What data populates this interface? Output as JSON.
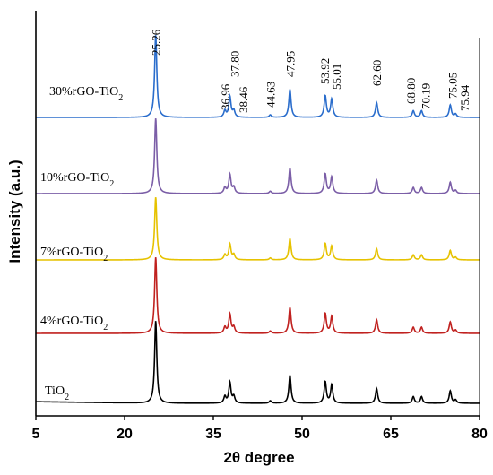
{
  "chart_data": {
    "type": "line",
    "xlabel": "2θ degree",
    "ylabel": "Intensity (a.u.)",
    "xlim": [
      5,
      80
    ],
    "xticks": [
      "5",
      "20",
      "35",
      "50",
      "65",
      "80"
    ],
    "grid": false,
    "legend": "inline labels above each trace",
    "series": [
      {
        "name": "TiO",
        "subscript": "2",
        "color": "#000000"
      },
      {
        "name": "4%rGO-TiO",
        "subscript": "2",
        "color": "#c0211f"
      },
      {
        "name": "7%rGO-TiO",
        "subscript": "2",
        "color": "#e6c200"
      },
      {
        "name": "10%rGO-TiO",
        "subscript": "2",
        "color": "#7b5ea7"
      },
      {
        "name": "30%rGO-TiO",
        "subscript": "2",
        "color": "#2a6dcc"
      }
    ],
    "peaks": [
      {
        "x": 25.26,
        "label": "25.26",
        "height": 1.0
      },
      {
        "x": 36.96,
        "label": "36.96",
        "height": 0.08
      },
      {
        "x": 37.8,
        "label": "37.80",
        "height": 0.25
      },
      {
        "x": 38.46,
        "label": "38.46",
        "height": 0.08
      },
      {
        "x": 44.63,
        "label": "44.63",
        "height": 0.03
      },
      {
        "x": 47.95,
        "label": "47.95",
        "height": 0.34
      },
      {
        "x": 53.92,
        "label": "53.92",
        "height": 0.26
      },
      {
        "x": 55.01,
        "label": "55.01",
        "height": 0.22
      },
      {
        "x": 62.6,
        "label": "62.60",
        "height": 0.18
      },
      {
        "x": 68.8,
        "label": "68.80",
        "height": 0.08
      },
      {
        "x": 70.19,
        "label": "70.19",
        "height": 0.08
      },
      {
        "x": 75.05,
        "label": "75.05",
        "height": 0.15
      },
      {
        "x": 75.94,
        "label": "75.94",
        "height": 0.04
      }
    ]
  }
}
